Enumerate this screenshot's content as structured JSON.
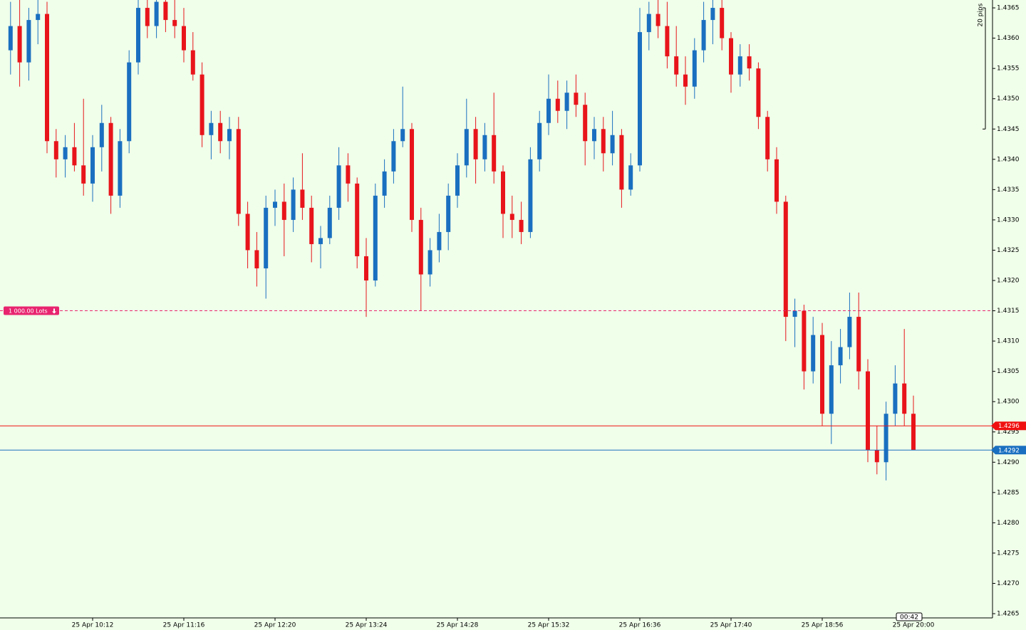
{
  "chart_data": {
    "type": "candlestick",
    "categories": [
      null,
      null,
      null,
      null,
      null,
      null,
      null,
      null,
      null,
      "25 Apr 10:12",
      null,
      null,
      null,
      null,
      null,
      null,
      null,
      null,
      null,
      "25 Apr 11:16",
      null,
      null,
      null,
      null,
      null,
      null,
      null,
      null,
      null,
      "25 Apr 12:20",
      null,
      null,
      null,
      null,
      null,
      null,
      null,
      null,
      null,
      "25 Apr 13:24",
      null,
      null,
      null,
      null,
      null,
      null,
      null,
      null,
      null,
      "25 Apr 14:28",
      null,
      null,
      null,
      null,
      null,
      null,
      null,
      null,
      null,
      "25 Apr 15:32",
      null,
      null,
      null,
      null,
      null,
      null,
      null,
      null,
      null,
      "25 Apr 16:36",
      null,
      null,
      null,
      null,
      null,
      null,
      null,
      null,
      null,
      "25 Apr 17:40",
      null,
      null,
      null,
      null,
      null,
      null,
      null,
      null,
      null,
      "25 Apr 18:56",
      null,
      null,
      null,
      null,
      null,
      null,
      null,
      null,
      null,
      "25 Apr 20:00"
    ],
    "open": [
      1.4358,
      1.4362,
      1.4356,
      1.4363,
      1.4364,
      1.4343,
      1.434,
      1.4342,
      1.4339,
      1.4336,
      1.4342,
      1.4346,
      1.4334,
      1.4343,
      1.4356,
      1.4365,
      1.4362,
      1.4366,
      1.4363,
      1.4362,
      1.4358,
      1.4354,
      1.4344,
      1.4346,
      1.4343,
      1.4345,
      1.4331,
      1.4325,
      1.4322,
      1.4332,
      1.4333,
      1.433,
      1.4335,
      1.4332,
      1.4326,
      1.4327,
      1.4332,
      1.4339,
      1.4336,
      1.4324,
      1.432,
      1.4334,
      1.4338,
      1.4343,
      1.4345,
      1.433,
      1.4321,
      1.4325,
      1.4328,
      1.4334,
      1.4339,
      1.4345,
      1.434,
      1.4344,
      1.4338,
      1.4331,
      1.433,
      1.4328,
      1.434,
      1.4346,
      1.435,
      1.4348,
      1.4351,
      1.4349,
      1.4343,
      1.4345,
      1.4341,
      1.4344,
      1.4335,
      1.4339,
      1.4361,
      1.4364,
      1.4362,
      1.4357,
      1.4354,
      1.4352,
      1.4358,
      1.4363,
      1.4365,
      1.436,
      1.4354,
      1.4357,
      1.4355,
      1.4347,
      1.434,
      1.4333,
      1.4314,
      1.4315,
      1.4305,
      1.4311,
      1.4298,
      1.4306,
      1.4309,
      1.4314,
      1.4305,
      1.4292,
      1.429,
      1.4298,
      1.4303,
      1.4298
    ],
    "high": [
      1.4366,
      1.4367,
      1.4365,
      1.4368,
      1.4366,
      1.4345,
      1.4344,
      1.4346,
      1.435,
      1.4344,
      1.4349,
      1.4347,
      1.4345,
      1.4358,
      1.4367,
      1.4368,
      1.4368,
      1.4368,
      1.4368,
      1.4365,
      1.4361,
      1.4356,
      1.4348,
      1.4348,
      1.4347,
      1.4347,
      1.4333,
      1.4328,
      1.4334,
      1.4335,
      1.4336,
      1.4337,
      1.4341,
      1.4334,
      1.4329,
      1.4334,
      1.4342,
      1.4341,
      1.4337,
      1.4327,
      1.4336,
      1.434,
      1.4345,
      1.4352,
      1.4346,
      1.4332,
      1.4327,
      1.4331,
      1.4336,
      1.4341,
      1.435,
      1.4347,
      1.4346,
      1.4351,
      1.4339,
      1.4334,
      1.4333,
      1.4342,
      1.4348,
      1.4354,
      1.4353,
      1.4353,
      1.4354,
      1.4351,
      1.4347,
      1.4347,
      1.4348,
      1.4345,
      1.4341,
      1.4365,
      1.4366,
      1.4367,
      1.4366,
      1.4362,
      1.4357,
      1.436,
      1.4366,
      1.4367,
      1.4367,
      1.4361,
      1.4359,
      1.4359,
      1.4356,
      1.4348,
      1.4342,
      1.4334,
      1.4317,
      1.4316,
      1.4314,
      1.4313,
      1.431,
      1.4312,
      1.4318,
      1.4318,
      1.4307,
      1.4296,
      1.43,
      1.4306,
      1.4312,
      1.4301
    ],
    "low": [
      1.4354,
      1.4352,
      1.4353,
      1.4359,
      1.4341,
      1.4337,
      1.4337,
      1.4338,
      1.4334,
      1.4333,
      1.4338,
      1.4331,
      1.4332,
      1.4341,
      1.4354,
      1.436,
      1.436,
      1.4361,
      1.436,
      1.4356,
      1.4353,
      1.4342,
      1.434,
      1.4341,
      1.434,
      1.4329,
      1.4322,
      1.4319,
      1.4317,
      1.4329,
      1.4324,
      1.4328,
      1.433,
      1.4323,
      1.4322,
      1.4326,
      1.433,
      1.4333,
      1.4322,
      1.4314,
      1.4319,
      1.4332,
      1.4336,
      1.4342,
      1.4328,
      1.4315,
      1.4319,
      1.4323,
      1.4325,
      1.4332,
      1.4337,
      1.4336,
      1.4338,
      1.4336,
      1.4327,
      1.4327,
      1.4326,
      1.4327,
      1.4338,
      1.4344,
      1.4346,
      1.4345,
      1.4347,
      1.4339,
      1.434,
      1.4338,
      1.4339,
      1.4332,
      1.4334,
      1.4338,
      1.4358,
      1.436,
      1.4355,
      1.4352,
      1.4349,
      1.435,
      1.4356,
      1.4359,
      1.4358,
      1.4351,
      1.4352,
      1.4353,
      1.4345,
      1.4338,
      1.4331,
      1.431,
      1.4309,
      1.4302,
      1.4303,
      1.4296,
      1.4293,
      1.4303,
      1.4307,
      1.4302,
      1.429,
      1.4288,
      1.4287,
      1.4296,
      1.4296,
      1.4292
    ],
    "close": [
      1.4362,
      1.4356,
      1.4363,
      1.4364,
      1.4343,
      1.434,
      1.4342,
      1.4339,
      1.4336,
      1.4342,
      1.4346,
      1.4334,
      1.4343,
      1.4356,
      1.4365,
      1.4362,
      1.4366,
      1.4363,
      1.4362,
      1.4358,
      1.4354,
      1.4344,
      1.4346,
      1.4343,
      1.4345,
      1.4331,
      1.4325,
      1.4322,
      1.4332,
      1.4333,
      1.433,
      1.4335,
      1.4332,
      1.4326,
      1.4327,
      1.4332,
      1.4339,
      1.4336,
      1.4324,
      1.432,
      1.4334,
      1.4338,
      1.4343,
      1.4345,
      1.433,
      1.4321,
      1.4325,
      1.4328,
      1.4334,
      1.4339,
      1.4345,
      1.434,
      1.4344,
      1.4338,
      1.4331,
      1.433,
      1.4328,
      1.434,
      1.4346,
      1.435,
      1.4348,
      1.4351,
      1.4349,
      1.4343,
      1.4345,
      1.4341,
      1.4344,
      1.4335,
      1.4339,
      1.4361,
      1.4364,
      1.4362,
      1.4357,
      1.4354,
      1.4352,
      1.4358,
      1.4363,
      1.4365,
      1.436,
      1.4354,
      1.4357,
      1.4355,
      1.4347,
      1.434,
      1.4333,
      1.4314,
      1.4315,
      1.4305,
      1.4311,
      1.4298,
      1.4306,
      1.4309,
      1.4314,
      1.4305,
      1.4292,
      1.429,
      1.4298,
      1.4303,
      1.4298,
      1.4292
    ],
    "up_color": "#1a6fc0",
    "down_color": "#e8141b",
    "ylim": [
      1.42643,
      1.43663
    ],
    "yticks": [
      1.4265,
      {
        "value": 1.427,
        "label": "1.4270"
      },
      1.4275,
      {
        "value": 1.428,
        "label": "1.4280"
      },
      1.4285,
      {
        "value": 1.429,
        "label": "1.4290"
      },
      1.4295,
      {
        "value": 1.43,
        "label": "1.4300"
      },
      1.4305,
      {
        "value": 1.431,
        "label": "1.4310"
      },
      1.4315,
      {
        "value": 1.432,
        "label": "1.4320"
      },
      1.4325,
      {
        "value": 1.433,
        "label": "1.4330"
      },
      1.4335,
      {
        "value": 1.434,
        "label": "1.4340"
      },
      1.4345,
      {
        "value": 1.435,
        "label": "1.4350"
      },
      1.4355,
      {
        "value": 1.436,
        "label": "1.4360"
      },
      1.4365
    ],
    "price_lines": [
      {
        "value": 1.4296,
        "color": "#f01010"
      },
      {
        "value": 1.4292,
        "color": "#1a6fc0"
      }
    ],
    "order_line": {
      "value": 1.4315,
      "label": "1 000.00 Lots",
      "color": "#e8246f"
    },
    "ruler": {
      "label": "20 pips",
      "from": 1.4345,
      "to": 1.4365
    },
    "timer": "00:42"
  }
}
